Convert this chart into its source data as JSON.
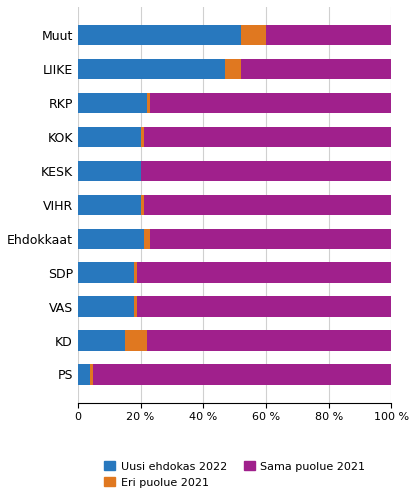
{
  "categories": [
    "Muut",
    "LIIKE",
    "RKP",
    "KOK",
    "KESK",
    "VIHR",
    "Ehdokkaat",
    "SDP",
    "VAS",
    "KD",
    "PS"
  ],
  "blue": [
    52,
    47,
    22,
    20,
    20,
    20,
    21,
    18,
    18,
    15,
    4
  ],
  "orange": [
    8,
    5,
    1,
    1,
    0,
    1,
    2,
    1,
    1,
    7,
    1
  ],
  "purple": [
    40,
    48,
    77,
    79,
    80,
    79,
    77,
    81,
    81,
    78,
    95
  ],
  "colors": {
    "blue": "#2878BE",
    "orange": "#E07820",
    "purple": "#A0208C"
  },
  "legend_labels": [
    "Uusi ehdokas 2022",
    "Eri puolue 2021",
    "Sama puolue 2021"
  ],
  "xtick_labels": [
    "0",
    "20 %",
    "40 %",
    "60 %",
    "80 %",
    "100 %"
  ],
  "xtick_vals": [
    0,
    20,
    40,
    60,
    80,
    100
  ],
  "xlim": [
    0,
    100
  ],
  "background_color": "#ffffff",
  "bar_height": 0.6,
  "grid_color": "#d0d0d0",
  "tick_fontsize": 8,
  "label_fontsize": 9,
  "legend_fontsize": 8
}
